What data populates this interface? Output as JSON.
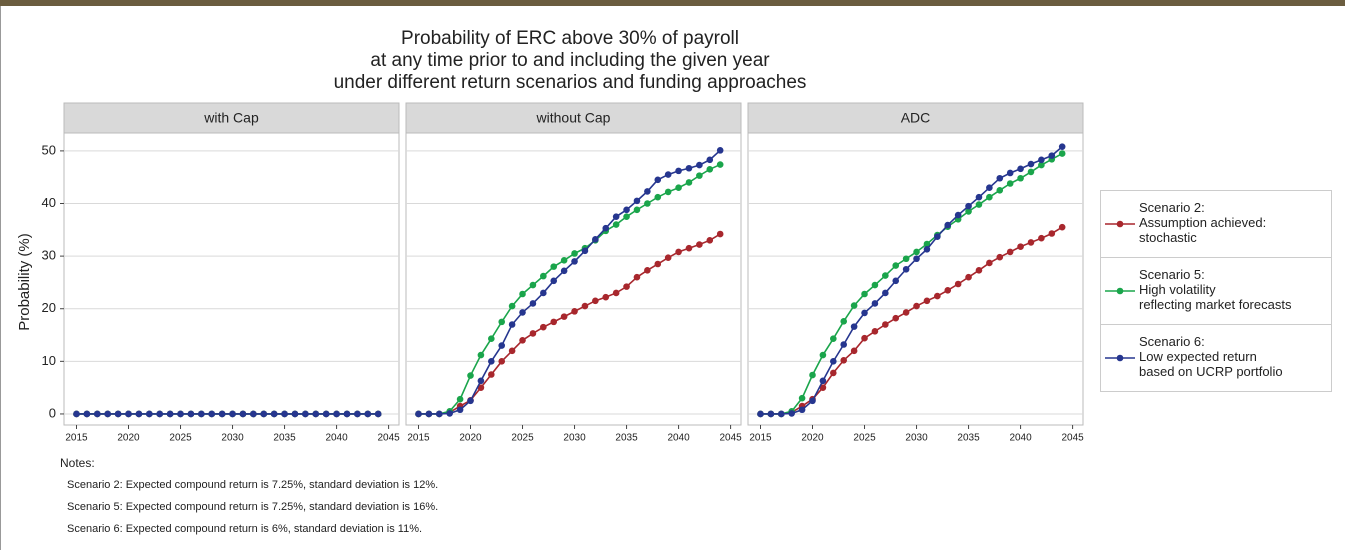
{
  "title": "Probability of ERC above 30% of payroll\nat any time prior to and including the given year\nunder different return scenarios and funding approaches",
  "y_label": "Probability (%)",
  "notes": {
    "heading": "Notes:",
    "lines": [
      "Scenario 2: Expected compound return is 7.25%, standard deviation is 12%.",
      "Scenario 5: Expected compound return is 7.25%, standard deviation is 16%.",
      "Scenario 6: Expected compound return is 6%, standard deviation is 11%."
    ]
  },
  "chart_data": [
    {
      "type": "line",
      "title": "with Cap",
      "x": [
        2015,
        2016,
        2017,
        2018,
        2019,
        2020,
        2021,
        2022,
        2023,
        2024,
        2025,
        2026,
        2027,
        2028,
        2029,
        2030,
        2031,
        2032,
        2033,
        2034,
        2035,
        2036,
        2037,
        2038,
        2039,
        2040,
        2041,
        2042,
        2043,
        2044
      ],
      "xlim": [
        2013.8,
        2046.0
      ],
      "xticks": [
        2015,
        2020,
        2025,
        2030,
        2035,
        2040,
        2045
      ],
      "ylim": [
        -2.1,
        53.4
      ],
      "yticks": [
        0,
        10,
        20,
        30,
        40,
        50
      ],
      "grid": true,
      "series": [
        {
          "name": "Scenario 2:\nAssumption achieved:\nstochastic",
          "color": "#a8272d",
          "values": [
            0,
            0,
            0,
            0,
            0,
            0,
            0,
            0,
            0,
            0,
            0,
            0,
            0,
            0,
            0,
            0,
            0,
            0,
            0,
            0,
            0,
            0,
            0,
            0,
            0,
            0,
            0,
            0,
            0,
            0
          ]
        },
        {
          "name": "Scenario 5:\nHigh volatility\nreflecting market forecasts",
          "color": "#1aa54b",
          "values": [
            0,
            0,
            0,
            0,
            0,
            0,
            0,
            0,
            0,
            0,
            0,
            0,
            0,
            0,
            0,
            0,
            0,
            0,
            0,
            0,
            0,
            0,
            0,
            0,
            0,
            0,
            0,
            0,
            0,
            0
          ]
        },
        {
          "name": "Scenario 6:\nLow expected return\nbased on UCRP portfolio",
          "color": "#26368f",
          "values": [
            0,
            0,
            0,
            0,
            0,
            0,
            0,
            0,
            0,
            0,
            0,
            0,
            0,
            0,
            0,
            0,
            0,
            0,
            0,
            0,
            0,
            0,
            0,
            0,
            0,
            0,
            0,
            0,
            0,
            0
          ]
        }
      ]
    },
    {
      "type": "line",
      "title": "without Cap",
      "x": [
        2015,
        2016,
        2017,
        2018,
        2019,
        2020,
        2021,
        2022,
        2023,
        2024,
        2025,
        2026,
        2027,
        2028,
        2029,
        2030,
        2031,
        2032,
        2033,
        2034,
        2035,
        2036,
        2037,
        2038,
        2039,
        2040,
        2041,
        2042,
        2043,
        2044
      ],
      "xlim": [
        2013.8,
        2046.0
      ],
      "xticks": [
        2015,
        2020,
        2025,
        2030,
        2035,
        2040,
        2045
      ],
      "ylim": [
        -2.1,
        53.4
      ],
      "yticks": [
        0,
        10,
        20,
        30,
        40,
        50
      ],
      "grid": true,
      "series": [
        {
          "name": "Scenario 2:\nAssumption achieved:\nstochastic",
          "color": "#a8272d",
          "values": [
            0,
            0,
            0,
            0.3,
            1.5,
            2.6,
            5,
            7.5,
            10,
            12,
            14,
            15.3,
            16.5,
            17.5,
            18.5,
            19.5,
            20.5,
            21.5,
            22.2,
            23,
            24.2,
            26,
            27.3,
            28.5,
            29.7,
            30.8,
            31.5,
            32.2,
            33,
            34.2
          ]
        },
        {
          "name": "Scenario 5:\nHigh volatility\nreflecting market forecasts",
          "color": "#1aa54b",
          "values": [
            0,
            0,
            0,
            0.5,
            2.8,
            7.3,
            11.2,
            14.3,
            17.5,
            20.5,
            22.8,
            24.5,
            26.2,
            28,
            29.2,
            30.5,
            31.5,
            33,
            34.8,
            36,
            37.5,
            38.8,
            40,
            41.2,
            42.2,
            43,
            44,
            45.3,
            46.5,
            47.4
          ]
        },
        {
          "name": "Scenario 6:\nLow expected return\nbased on UCRP portfolio",
          "color": "#26368f",
          "values": [
            0,
            0,
            0,
            0.1,
            0.8,
            2.5,
            6.3,
            10,
            13,
            17,
            19.3,
            21,
            23,
            25.3,
            27.2,
            29,
            31,
            33.2,
            35.3,
            37.5,
            38.8,
            40.5,
            42.3,
            44.5,
            45.5,
            46.2,
            46.7,
            47.3,
            48.3,
            50.1
          ]
        }
      ]
    },
    {
      "type": "line",
      "title": "ADC",
      "x": [
        2015,
        2016,
        2017,
        2018,
        2019,
        2020,
        2021,
        2022,
        2023,
        2024,
        2025,
        2026,
        2027,
        2028,
        2029,
        2030,
        2031,
        2032,
        2033,
        2034,
        2035,
        2036,
        2037,
        2038,
        2039,
        2040,
        2041,
        2042,
        2043,
        2044
      ],
      "xlim": [
        2013.8,
        2046.0
      ],
      "xticks": [
        2015,
        2020,
        2025,
        2030,
        2035,
        2040,
        2045
      ],
      "ylim": [
        -2.1,
        53.4
      ],
      "yticks": [
        0,
        10,
        20,
        30,
        40,
        50
      ],
      "grid": true,
      "series": [
        {
          "name": "Scenario 2:\nAssumption achieved:\nstochastic",
          "color": "#a8272d",
          "values": [
            0,
            0,
            0,
            0.3,
            1.5,
            2.8,
            5,
            7.8,
            10.2,
            12,
            14.4,
            15.7,
            17,
            18.2,
            19.3,
            20.5,
            21.5,
            22.4,
            23.5,
            24.7,
            26,
            27.3,
            28.7,
            29.8,
            30.8,
            31.8,
            32.6,
            33.4,
            34.3,
            35.5
          ]
        },
        {
          "name": "Scenario 5:\nHigh volatility\nreflecting market forecasts",
          "color": "#1aa54b",
          "values": [
            0,
            0,
            0,
            0.5,
            3,
            7.4,
            11.2,
            14.3,
            17.6,
            20.6,
            22.8,
            24.5,
            26.3,
            28.2,
            29.5,
            30.8,
            32.3,
            34,
            35.6,
            37,
            38.5,
            39.8,
            41.2,
            42.5,
            43.8,
            44.8,
            46,
            47.3,
            48.4,
            49.5
          ]
        },
        {
          "name": "Scenario 6:\nLow expected return\nbased on UCRP portfolio",
          "color": "#26368f",
          "values": [
            0,
            0,
            0,
            0.1,
            0.8,
            2.5,
            6.3,
            10,
            13.2,
            16.6,
            19.2,
            21,
            23,
            25.3,
            27.5,
            29.5,
            31.3,
            33.7,
            35.9,
            37.8,
            39.5,
            41.2,
            43,
            44.8,
            45.8,
            46.6,
            47.5,
            48.3,
            49.1,
            50.8
          ]
        }
      ]
    }
  ]
}
